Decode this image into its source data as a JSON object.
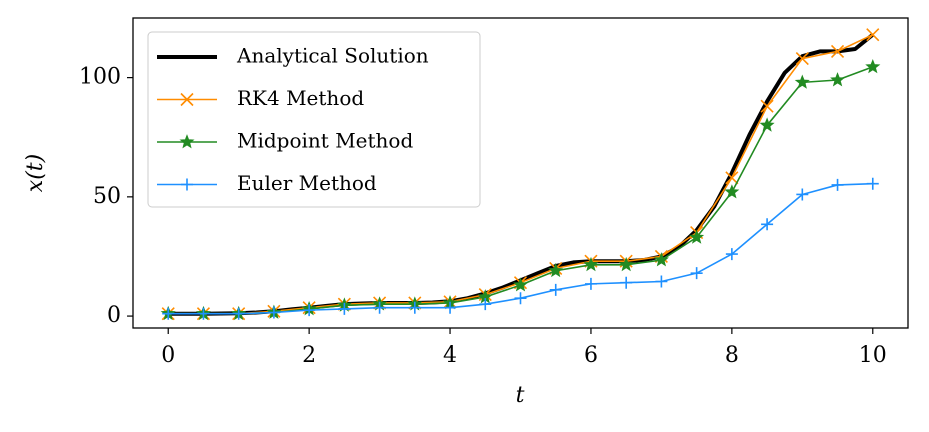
{
  "chart_data": {
    "type": "line",
    "x_label": "t",
    "y_label": "x(t)",
    "xlim": [
      -0.5,
      10.5
    ],
    "ylim": [
      -5,
      125
    ],
    "xticks": [
      0,
      2,
      4,
      6,
      8,
      10
    ],
    "yticks": [
      0,
      50,
      100
    ],
    "legend": "upper left",
    "series": [
      {
        "name": "Analytical Solution",
        "color": "#000000",
        "marker": "none",
        "x": [
          0,
          0.25,
          0.5,
          0.75,
          1,
          1.25,
          1.5,
          1.75,
          2,
          2.25,
          2.5,
          2.75,
          3,
          3.25,
          3.5,
          3.75,
          4,
          4.25,
          4.5,
          4.75,
          5,
          5.25,
          5.5,
          5.75,
          6,
          6.25,
          6.5,
          6.75,
          7,
          7.25,
          7.5,
          7.75,
          8,
          8.25,
          8.5,
          8.75,
          9,
          9.25,
          9.5,
          9.75,
          10
        ],
        "values": [
          1,
          1,
          1,
          1.1,
          1.2,
          1.5,
          2,
          2.8,
          3.5,
          4.3,
          5,
          5.3,
          5.5,
          5.5,
          5.5,
          5.7,
          6.2,
          7.5,
          9.5,
          12,
          15,
          18,
          21,
          22.5,
          23,
          23,
          23,
          23.5,
          25,
          29,
          36,
          46,
          60,
          76,
          90,
          102,
          109,
          111,
          111,
          112,
          118
        ]
      },
      {
        "name": "RK4 Method",
        "color": "#ff8c00",
        "marker": "x",
        "x": [
          0,
          0.5,
          1,
          1.5,
          2,
          2.5,
          3,
          3.5,
          4,
          4.5,
          5,
          5.5,
          6,
          6.5,
          7,
          7.5,
          8,
          8.5,
          9,
          9.5,
          10
        ],
        "values": [
          1,
          1,
          1,
          2,
          3.5,
          5,
          5.5,
          5.5,
          6,
          9,
          14,
          20,
          23,
          23,
          25,
          35,
          58,
          88,
          108,
          111,
          118
        ]
      },
      {
        "name": "Midpoint Method",
        "color": "#228b22",
        "marker": "star",
        "x": [
          0,
          0.5,
          1,
          1.5,
          2,
          2.5,
          3,
          3.5,
          4,
          4.5,
          5,
          5.5,
          6,
          6.5,
          7,
          7.5,
          8,
          8.5,
          9,
          9.5,
          10
        ],
        "values": [
          1,
          1,
          1,
          1.5,
          3,
          4.5,
          5,
          5,
          5.5,
          8,
          13,
          19,
          21.5,
          21.5,
          23.5,
          33,
          52,
          80,
          98,
          99,
          104.5
        ]
      },
      {
        "name": "Euler Method",
        "color": "#1e90ff",
        "marker": "plus",
        "x": [
          0,
          0.5,
          1,
          1.5,
          2,
          2.5,
          3,
          3.5,
          4,
          4.5,
          5,
          5.5,
          6,
          6.5,
          7,
          7.5,
          8,
          8.5,
          9,
          9.5,
          10
        ],
        "values": [
          1,
          1,
          1,
          1.5,
          2.5,
          3,
          3.5,
          3.5,
          3.5,
          5,
          7.5,
          11,
          13.5,
          14,
          14.5,
          18,
          26,
          38.5,
          51,
          55,
          55.5
        ]
      }
    ]
  }
}
